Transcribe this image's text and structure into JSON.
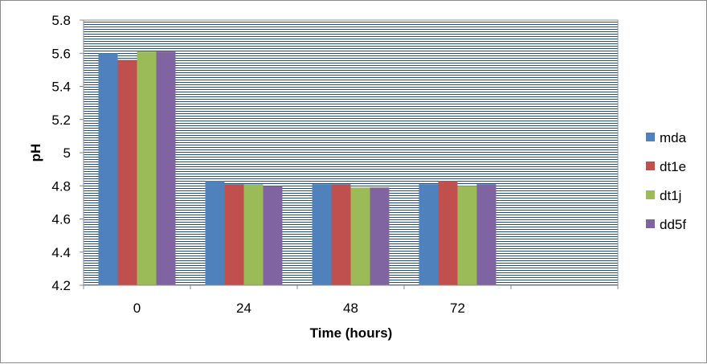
{
  "chart_data": {
    "type": "bar",
    "title": "",
    "xlabel": "Time (hours)",
    "ylabel": "pH",
    "categories": [
      "0",
      "24",
      "48",
      "72",
      ""
    ],
    "series": [
      {
        "name": "mda",
        "color": "#4f81bd",
        "values": [
          5.6,
          4.83,
          4.81,
          4.81,
          null
        ]
      },
      {
        "name": "dt1e",
        "color": "#c0504d",
        "values": [
          5.56,
          4.81,
          4.81,
          4.83,
          null
        ]
      },
      {
        "name": "dt1j",
        "color": "#9bbb59",
        "values": [
          5.61,
          4.81,
          4.79,
          4.8,
          null
        ]
      },
      {
        "name": "dd5f",
        "color": "#8064a2",
        "values": [
          5.61,
          4.8,
          4.79,
          4.81,
          null
        ]
      }
    ],
    "ylim": [
      4.2,
      5.8
    ],
    "yticks": [
      "4.2",
      "4.4",
      "4.6",
      "4.8",
      "5",
      "5.2",
      "5.4",
      "5.6",
      "5.8"
    ],
    "grid": true,
    "gridline_color": "#1f4e79",
    "legend_position": "right"
  }
}
